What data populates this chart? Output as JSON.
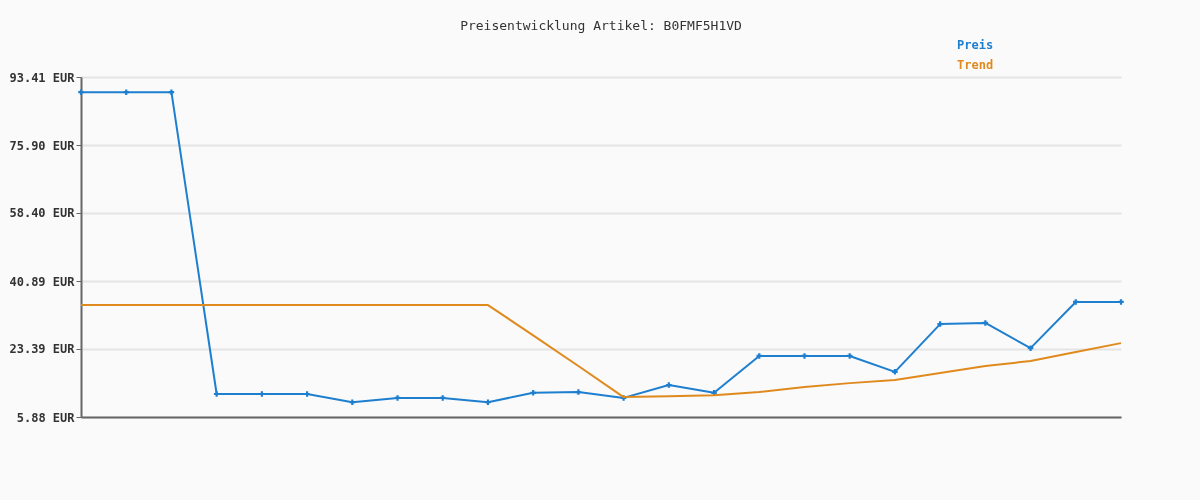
{
  "chart_data": {
    "type": "line",
    "title": "Preisentwicklung Artikel: B0FMF5H1VD",
    "categories": [
      null,
      null,
      null,
      null,
      null,
      null,
      null,
      null,
      null,
      null,
      null,
      null,
      null,
      null,
      null,
      null,
      null,
      null,
      null,
      null,
      null,
      null,
      null,
      null
    ],
    "series": [
      {
        "name": "Preis",
        "color": "#1f7fcf",
        "marker": "cross",
        "values": [
          89.5,
          89.5,
          89.5,
          11.8,
          11.8,
          11.8,
          9.7,
          10.8,
          10.8,
          9.7,
          12.1,
          12.3,
          10.8,
          14.1,
          12.1,
          21.6,
          21.6,
          21.6,
          17.5,
          29.8,
          30.1,
          23.6,
          35.5,
          35.5
        ]
      },
      {
        "name": "Trend",
        "color": "#e08a1e",
        "marker": "none",
        "values": [
          34.7,
          34.7,
          34.7,
          34.7,
          34.7,
          34.7,
          34.7,
          34.7,
          34.7,
          34.7,
          26.9,
          19.0,
          11.0,
          11.2,
          11.5,
          12.3,
          13.6,
          14.6,
          15.4,
          17.2,
          19.0,
          20.3,
          22.6,
          24.9
        ]
      }
    ],
    "ylim": [
      5.88,
      93.41
    ],
    "yticks": [
      {
        "value": 5.88,
        "label": "5.88 EUR"
      },
      {
        "value": 23.39,
        "label": "23.39 EUR"
      },
      {
        "value": 40.89,
        "label": "40.89 EUR"
      },
      {
        "value": 58.4,
        "label": "58.40 EUR"
      },
      {
        "value": 75.9,
        "label": "75.90 EUR"
      },
      {
        "value": 93.41,
        "label": "93.41 EUR"
      }
    ],
    "grid": "y",
    "legend": "top right",
    "tick_labels": "y"
  }
}
